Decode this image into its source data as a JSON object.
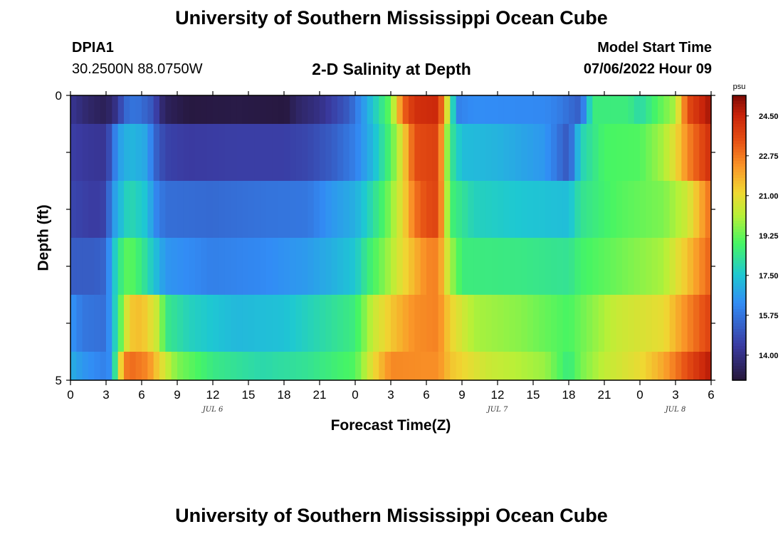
{
  "page": {
    "title": "University of Southern Mississippi Ocean Cube",
    "title_repeat": "University of Southern Mississippi Ocean Cube",
    "station_id": "DPIA1",
    "coordinates": "30.2500N  88.0750W",
    "model_start_label": "Model Start Time",
    "model_start_value": "07/06/2022 Hour 09"
  },
  "chart_data": {
    "type": "heatmap",
    "title": "2-D Salinity at Depth",
    "xlabel": "Forecast Time(Z)",
    "ylabel": "Depth (ft)",
    "x_unit": "hours since JUL 6 00Z",
    "x_range": [
      0,
      54
    ],
    "y_range": [
      0,
      5
    ],
    "x_tick_values": [
      0,
      3,
      6,
      9,
      12,
      15,
      18,
      21,
      24,
      27,
      30,
      33,
      36,
      39,
      42,
      45,
      48,
      51,
      54
    ],
    "x_tick_labels": [
      "0",
      "3",
      "6",
      "9",
      "12",
      "15",
      "18",
      "21",
      "0",
      "3",
      "6",
      "9",
      "12",
      "15",
      "18",
      "21",
      "0",
      "3",
      "6"
    ],
    "y_tick_labels": [
      "0",
      "5"
    ],
    "date_labels": [
      {
        "text": "JUL 6",
        "hour": 12
      },
      {
        "text": "JUL 7",
        "hour": 36
      },
      {
        "text": "JUL 8",
        "hour": 51
      }
    ],
    "colorbar": {
      "unit": "psu",
      "min": 12.9,
      "max": 25.4,
      "ticks": [
        "14.00",
        "15.75",
        "17.50",
        "19.25",
        "21.00",
        "22.75",
        "24.50"
      ],
      "tick_values": [
        14.0,
        15.75,
        17.5,
        19.25,
        21.0,
        22.75,
        24.5
      ]
    },
    "depth_levels": [
      "0-0.5 ft",
      "0.5-1.5 ft",
      "1.5-2.5 ft",
      "2.5-3.5 ft",
      "3.5-4.5 ft",
      "4.5-5 ft"
    ],
    "time_columns_per_hour": 2,
    "rows": [
      {
        "depth": "0-0.5 ft",
        "key_times": [
          0,
          1.5,
          3,
          4,
          4.5,
          5.5,
          7,
          7.5,
          8,
          10,
          14,
          17.8,
          18,
          18.2,
          19,
          21,
          23.5,
          25.5,
          27,
          28,
          29,
          31,
          32,
          32.5,
          34,
          40,
          41,
          43,
          44,
          47,
          48,
          51,
          52,
          54
        ],
        "key_values": [
          14.2,
          13.6,
          13.3,
          14.2,
          15.4,
          15.8,
          15.0,
          14.0,
          13.4,
          13.0,
          13.1,
          13.0,
          12.9,
          13.0,
          13.5,
          14.0,
          15.2,
          17.5,
          19.3,
          23.0,
          24.2,
          24.4,
          19.5,
          16.0,
          16.3,
          16.2,
          16.0,
          15.2,
          18.6,
          18.6,
          18.0,
          20.0,
          23.5,
          25.0
        ]
      },
      {
        "depth": "0.5-1.5 ft",
        "key_times": [
          0,
          1.5,
          3,
          3.5,
          4,
          5,
          6.5,
          7,
          8,
          10,
          14,
          18,
          20,
          22,
          24,
          25.5,
          27,
          28,
          29,
          31,
          31.5,
          32,
          33,
          36,
          40,
          41,
          42,
          43,
          45,
          48,
          50,
          51,
          52,
          54
        ],
        "key_values": [
          14.5,
          14.3,
          14.2,
          15.4,
          16.6,
          17.2,
          16.8,
          15.5,
          14.6,
          14.4,
          14.5,
          14.5,
          14.7,
          15.2,
          16.0,
          17.2,
          19.0,
          21.0,
          23.5,
          23.8,
          21.0,
          18.5,
          17.3,
          17.1,
          16.5,
          15.8,
          15.0,
          17.8,
          18.9,
          19.0,
          20.0,
          21.0,
          22.5,
          24.3
        ]
      },
      {
        "depth": "1.5-2.5 ft",
        "key_times": [
          0,
          2,
          3,
          3.5,
          4.5,
          5,
          6.5,
          7,
          8,
          12,
          16,
          20,
          22,
          24,
          25,
          26.5,
          28,
          29,
          30,
          31,
          32,
          34,
          38,
          42,
          43,
          46,
          50,
          52,
          54
        ],
        "key_values": [
          14.7,
          14.4,
          14.6,
          16.4,
          17.6,
          18.0,
          17.4,
          16.3,
          15.6,
          15.5,
          15.7,
          15.8,
          16.5,
          17.0,
          17.7,
          19.0,
          21.0,
          22.8,
          23.5,
          23.7,
          18.8,
          17.8,
          17.5,
          17.3,
          18.3,
          19.0,
          19.5,
          20.5,
          23.0
        ]
      },
      {
        "depth": "2.5-3.5 ft",
        "key_times": [
          0,
          2,
          3,
          3.5,
          4.5,
          5,
          6,
          7,
          8,
          12,
          16,
          20,
          22,
          24,
          25,
          26.5,
          28,
          30,
          31,
          32,
          33,
          38,
          42,
          43,
          46,
          50,
          52,
          54
        ],
        "key_values": [
          15.2,
          15.2,
          15.4,
          17.2,
          19.0,
          19.2,
          18.5,
          17.5,
          16.5,
          16.0,
          16.2,
          16.6,
          17.0,
          17.5,
          18.5,
          19.6,
          21.0,
          22.5,
          22.6,
          20.0,
          18.6,
          18.5,
          18.3,
          18.8,
          19.3,
          20.0,
          21.5,
          23.2
        ]
      },
      {
        "depth": "3.5-4.5 ft",
        "key_times": [
          0,
          1,
          3,
          3.5,
          4.5,
          5,
          6,
          7.5,
          8,
          10,
          14,
          18,
          20,
          24,
          25.5,
          27,
          29,
          31,
          32,
          34,
          38,
          42,
          43,
          46,
          50,
          52,
          54
        ],
        "key_values": [
          16.5,
          15.8,
          15.6,
          17.0,
          20.0,
          21.4,
          21.6,
          20.2,
          18.5,
          17.8,
          17.2,
          17.4,
          17.8,
          18.6,
          20.4,
          21.4,
          22.4,
          22.6,
          21.2,
          20.0,
          19.6,
          18.9,
          19.3,
          20.4,
          21.0,
          22.5,
          23.8
        ]
      },
      {
        "depth": "4.5-5 ft",
        "key_times": [
          0,
          1,
          3,
          3.5,
          4,
          4.5,
          5,
          6.5,
          8,
          9,
          12,
          16,
          20,
          24,
          25.5,
          27,
          30,
          31,
          32,
          35,
          40,
          42,
          43,
          45,
          48,
          50,
          52,
          54
        ],
        "key_values": [
          17.0,
          16.5,
          16.0,
          16.5,
          20.0,
          22.5,
          23.0,
          22.5,
          20.5,
          19.5,
          18.5,
          18.0,
          18.3,
          19.0,
          21.0,
          22.5,
          22.4,
          22.4,
          21.5,
          20.5,
          19.8,
          18.5,
          19.4,
          20.3,
          21.0,
          22.0,
          23.5,
          24.8
        ]
      }
    ]
  }
}
